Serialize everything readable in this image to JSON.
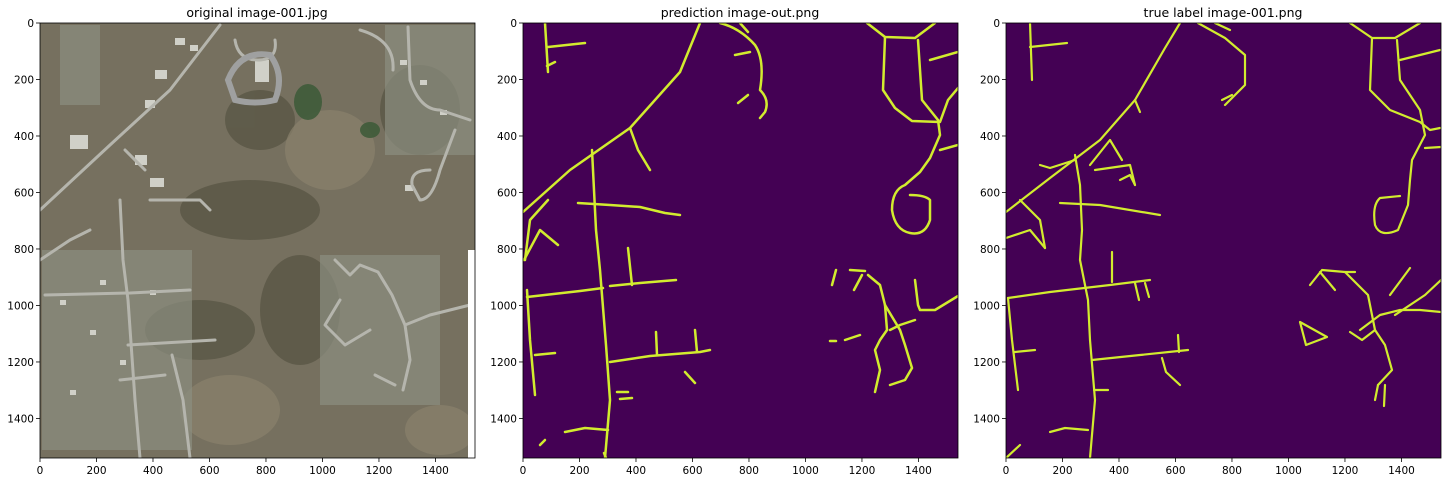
{
  "figure": {
    "panels": [
      {
        "title": "original image-001.jpg",
        "x_ticks": [
          "0",
          "200",
          "400",
          "600",
          "800",
          "1000",
          "1200",
          "1400"
        ],
        "y_ticks": [
          "0",
          "200",
          "400",
          "600",
          "800",
          "1000",
          "1200",
          "1400"
        ]
      },
      {
        "title": "prediction image-out.png",
        "x_ticks": [
          "0",
          "200",
          "400",
          "600",
          "800",
          "1000",
          "1200",
          "1400"
        ],
        "y_ticks": [
          "0",
          "200",
          "400",
          "600",
          "800",
          "1000",
          "1200",
          "1400"
        ]
      },
      {
        "title": "true label image-001.png",
        "x_ticks": [
          "0",
          "200",
          "400",
          "600",
          "800",
          "1000",
          "1200",
          "1400"
        ],
        "y_ticks": [
          "0",
          "200",
          "400",
          "600",
          "800",
          "1000",
          "1200",
          "1400"
        ]
      }
    ],
    "axis_range": [
      0,
      1540
    ],
    "colors": {
      "mask_background": "#440154",
      "road": "#d2ec2e",
      "aerial_base": "#76705f",
      "roads_gray": "#b5b5ad"
    }
  }
}
